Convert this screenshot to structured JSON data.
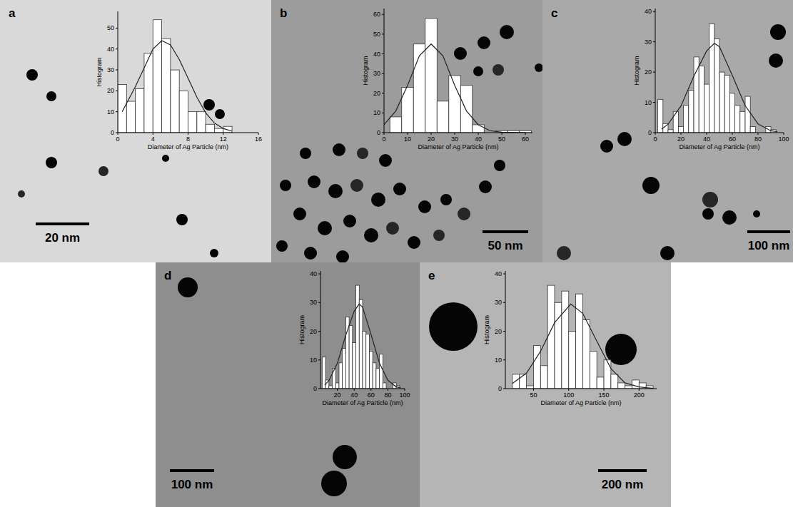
{
  "chart_data": [
    {
      "type": "histogram",
      "panel_label": "a",
      "annotations": [
        "20 nm"
      ],
      "xlabel": "Diameter of Ag Particle (nm)",
      "ylabel": "Histogram",
      "bins": [
        0,
        1,
        2,
        3,
        4,
        5,
        6,
        7,
        8,
        9,
        10,
        11,
        12,
        13,
        14
      ],
      "values": [
        23,
        15,
        21,
        38,
        54,
        45,
        30,
        20,
        10,
        10,
        4,
        2,
        3,
        0
      ],
      "fit": {
        "x": [
          0.5,
          2,
          3,
          4,
          5,
          6,
          7,
          8,
          9,
          10,
          11,
          12,
          13
        ],
        "values": [
          10,
          22,
          31,
          40,
          44,
          42,
          35,
          26,
          17,
          9.5,
          4.6,
          2,
          0.7
        ]
      },
      "xlim": [
        0,
        16
      ],
      "xticks": [
        0,
        4,
        8,
        12,
        16
      ],
      "ylim": [
        0,
        58
      ],
      "yticks": [
        0,
        10,
        20,
        30,
        40,
        50
      ]
    },
    {
      "type": "histogram",
      "panel_label": "b",
      "annotations": [
        "50 nm"
      ],
      "xlabel": "Diameter of Ag Particle (nm)",
      "ylabel": "Histogram",
      "bins": [
        2.5,
        7.5,
        12.5,
        17.5,
        22.5,
        27.5,
        32.5,
        37.5,
        42.5,
        47.5,
        52.5,
        57.5,
        62.5
      ],
      "values": [
        8,
        23,
        45,
        58,
        16,
        29,
        24,
        4,
        0,
        1,
        1,
        1
      ],
      "fit": {
        "x": [
          0,
          5,
          10,
          15,
          20,
          25,
          30,
          35,
          40,
          45,
          50,
          60
        ],
        "values": [
          4,
          11,
          24,
          39,
          45,
          39,
          24,
          11,
          4,
          1,
          0.2,
          0
        ]
      },
      "xlim": [
        0,
        63
      ],
      "xticks": [
        0,
        10,
        20,
        30,
        40,
        50,
        60
      ],
      "ylim": [
        0,
        63
      ],
      "yticks": [
        0,
        10,
        20,
        30,
        40,
        50,
        60
      ]
    },
    {
      "type": "histogram",
      "panel_label": "c",
      "annotations": [
        "100 nm"
      ],
      "xlabel": "Diameter of Ag Particle (nm)",
      "ylabel": "Histogram",
      "bins": [
        2,
        6,
        10,
        14,
        18,
        22,
        26,
        30,
        34,
        38,
        42,
        46,
        50,
        54,
        58,
        62,
        66,
        70,
        74,
        78,
        82,
        86,
        90,
        94
      ],
      "values": [
        11,
        3,
        1,
        7,
        2,
        9,
        14,
        25,
        22,
        16,
        36,
        31,
        20,
        19,
        13,
        9,
        7,
        12,
        2,
        0,
        0,
        2,
        1
      ],
      "fit": {
        "x": [
          5,
          10,
          20,
          30,
          40,
          46,
          50,
          60,
          70,
          80,
          90,
          95
        ],
        "values": [
          1.2,
          2.8,
          8.8,
          18.6,
          27,
          29.5,
          28.4,
          18.9,
          8.9,
          2.9,
          0.6,
          0.3
        ]
      },
      "xlim": [
        0,
        100
      ],
      "xticks": [
        0,
        20,
        40,
        60,
        80,
        100
      ],
      "ylim": [
        0,
        41
      ],
      "yticks": [
        0,
        10,
        20,
        30,
        40
      ]
    },
    {
      "type": "histogram",
      "panel_label": "d",
      "annotations": [
        "100 nm"
      ],
      "xlabel": "Diameter of Ag Particle (nm)",
      "ylabel": "Histogram",
      "bins": [
        2,
        6,
        10,
        14,
        18,
        22,
        26,
        30,
        34,
        38,
        42,
        46,
        50,
        54,
        58,
        62,
        66,
        70,
        74,
        78,
        82,
        86,
        90,
        94
      ],
      "values": [
        11,
        3,
        1,
        7,
        2,
        9,
        14,
        25,
        22,
        16,
        36,
        31,
        20,
        19,
        13,
        9,
        7,
        12,
        2,
        0,
        0,
        2,
        1
      ],
      "fit": {
        "x": [
          5,
          10,
          20,
          30,
          40,
          46,
          50,
          60,
          70,
          80,
          90,
          95
        ],
        "values": [
          1.2,
          2.8,
          8.8,
          18.6,
          27,
          29.5,
          28.4,
          18.9,
          8.9,
          2.9,
          0.6,
          0.3
        ]
      },
      "xlim": [
        0,
        100
      ],
      "xticks": [
        20,
        40,
        60,
        80,
        100
      ],
      "ylim": [
        0,
        41
      ],
      "yticks": [
        0,
        10,
        20,
        30,
        40
      ]
    },
    {
      "type": "histogram",
      "panel_label": "e",
      "annotations": [
        "200 nm"
      ],
      "xlabel": "Diameter of Ag Particle (nm)",
      "ylabel": "Histogram",
      "bins": [
        20,
        30,
        40,
        50,
        60,
        70,
        80,
        90,
        100,
        110,
        120,
        130,
        140,
        150,
        160,
        170,
        180,
        190,
        200,
        210,
        220
      ],
      "values": [
        5,
        5,
        1,
        15,
        8,
        36,
        30,
        34,
        20,
        33,
        24,
        13,
        4,
        10,
        5,
        2,
        1,
        3,
        2,
        1
      ],
      "fit": {
        "x": [
          20,
          40,
          60,
          80,
          103,
          120,
          140,
          160,
          180,
          200,
          220
        ],
        "values": [
          1.8,
          5.4,
          13,
          23,
          29.5,
          26.2,
          16.5,
          7,
          2,
          0.6,
          0.1
        ]
      },
      "xlim": [
        10,
        225
      ],
      "xticks": [
        50,
        100,
        150,
        200
      ],
      "ylim": [
        0,
        41
      ],
      "yticks": [
        0,
        10,
        20,
        30,
        40
      ]
    }
  ]
}
